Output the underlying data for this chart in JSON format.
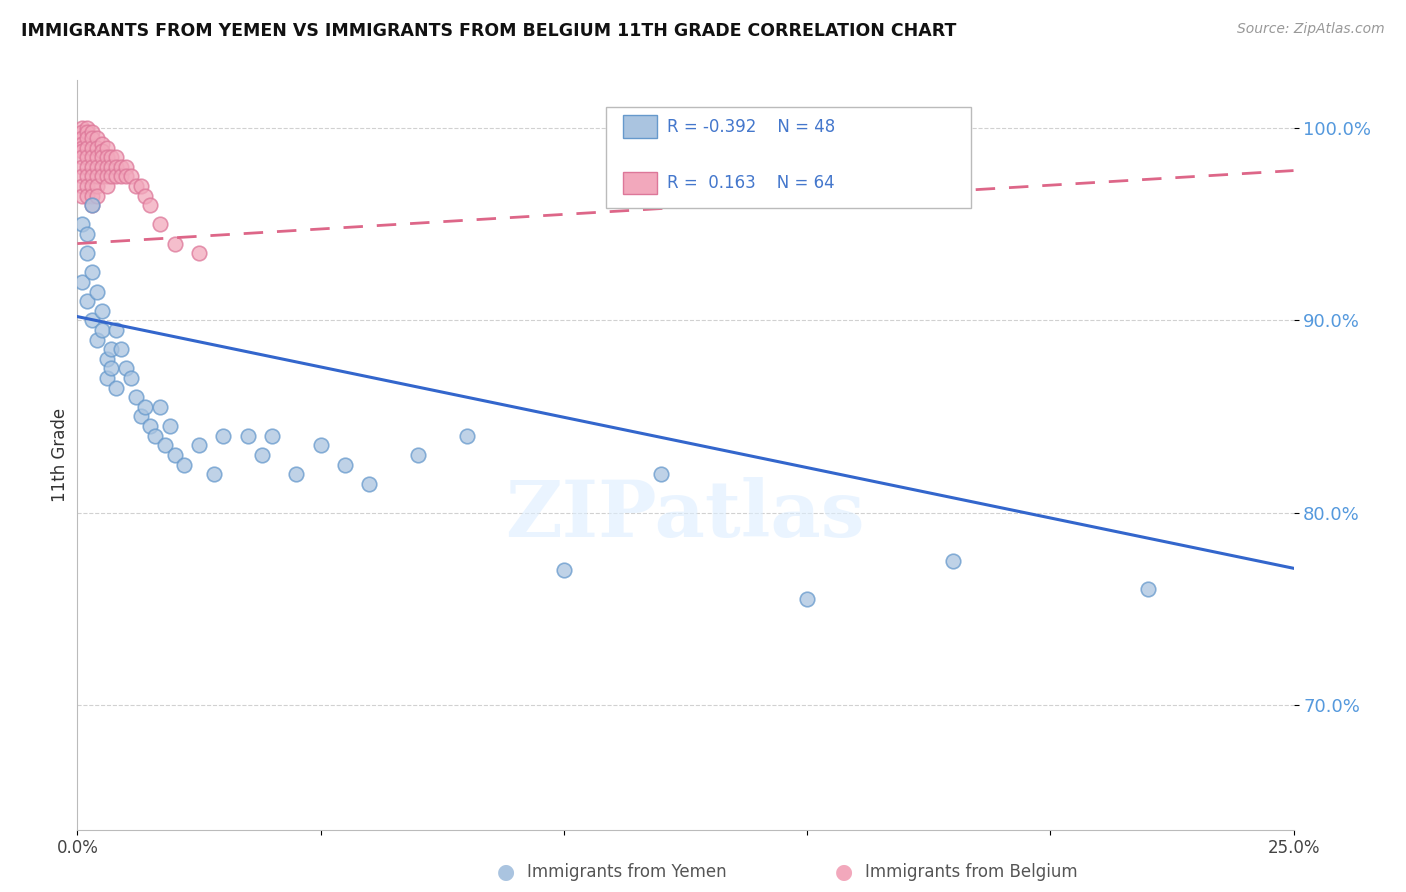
{
  "title": "IMMIGRANTS FROM YEMEN VS IMMIGRANTS FROM BELGIUM 11TH GRADE CORRELATION CHART",
  "source": "Source: ZipAtlas.com",
  "ylabel_label": "11th Grade",
  "x_min": 0.0,
  "x_max": 0.25,
  "y_min": 0.635,
  "y_max": 1.025,
  "y_ticks": [
    0.7,
    0.8,
    0.9,
    1.0
  ],
  "y_tick_labels": [
    "70.0%",
    "80.0%",
    "90.0%",
    "100.0%"
  ],
  "yemen_color": "#aac4e0",
  "belgium_color": "#f2a8bc",
  "yemen_edge": "#6699cc",
  "belgium_edge": "#dd7799",
  "trend_yemen_color": "#3366cc",
  "trend_belgium_color": "#dd6688",
  "R_yemen": -0.392,
  "N_yemen": 48,
  "R_belgium": 0.163,
  "N_belgium": 64,
  "watermark": "ZIPatlas",
  "legend_label_yemen": "Immigrants from Yemen",
  "legend_label_belgium": "Immigrants from Belgium",
  "trend_yemen_y0": 0.902,
  "trend_yemen_y1": 0.771,
  "trend_belgium_y0": 0.94,
  "trend_belgium_y1": 0.978,
  "yemen_x": [
    0.001,
    0.001,
    0.002,
    0.002,
    0.002,
    0.003,
    0.003,
    0.003,
    0.004,
    0.004,
    0.005,
    0.005,
    0.006,
    0.006,
    0.007,
    0.007,
    0.008,
    0.008,
    0.009,
    0.01,
    0.011,
    0.012,
    0.013,
    0.014,
    0.015,
    0.016,
    0.017,
    0.018,
    0.019,
    0.02,
    0.022,
    0.025,
    0.028,
    0.03,
    0.035,
    0.038,
    0.04,
    0.045,
    0.05,
    0.055,
    0.06,
    0.07,
    0.08,
    0.1,
    0.12,
    0.15,
    0.18,
    0.22
  ],
  "yemen_y": [
    0.95,
    0.92,
    0.935,
    0.945,
    0.91,
    0.96,
    0.925,
    0.9,
    0.89,
    0.915,
    0.905,
    0.895,
    0.88,
    0.87,
    0.885,
    0.875,
    0.895,
    0.865,
    0.885,
    0.875,
    0.87,
    0.86,
    0.85,
    0.855,
    0.845,
    0.84,
    0.855,
    0.835,
    0.845,
    0.83,
    0.825,
    0.835,
    0.82,
    0.84,
    0.84,
    0.83,
    0.84,
    0.82,
    0.835,
    0.825,
    0.815,
    0.83,
    0.84,
    0.77,
    0.82,
    0.755,
    0.775,
    0.76
  ],
  "belgium_x": [
    0.001,
    0.001,
    0.001,
    0.001,
    0.001,
    0.001,
    0.001,
    0.001,
    0.001,
    0.001,
    0.001,
    0.002,
    0.002,
    0.002,
    0.002,
    0.002,
    0.002,
    0.002,
    0.002,
    0.002,
    0.003,
    0.003,
    0.003,
    0.003,
    0.003,
    0.003,
    0.003,
    0.003,
    0.003,
    0.004,
    0.004,
    0.004,
    0.004,
    0.004,
    0.004,
    0.004,
    0.005,
    0.005,
    0.005,
    0.005,
    0.005,
    0.006,
    0.006,
    0.006,
    0.006,
    0.006,
    0.007,
    0.007,
    0.007,
    0.008,
    0.008,
    0.008,
    0.009,
    0.009,
    0.01,
    0.01,
    0.011,
    0.012,
    0.013,
    0.014,
    0.015,
    0.017,
    0.02,
    0.025
  ],
  "belgium_y": [
    1.0,
    0.998,
    0.995,
    0.992,
    0.99,
    0.988,
    0.985,
    0.98,
    0.975,
    0.97,
    0.965,
    1.0,
    0.998,
    0.995,
    0.99,
    0.985,
    0.98,
    0.975,
    0.97,
    0.965,
    0.998,
    0.995,
    0.99,
    0.985,
    0.98,
    0.975,
    0.97,
    0.965,
    0.96,
    0.995,
    0.99,
    0.985,
    0.98,
    0.975,
    0.97,
    0.965,
    0.992,
    0.988,
    0.985,
    0.98,
    0.975,
    0.99,
    0.985,
    0.98,
    0.975,
    0.97,
    0.985,
    0.98,
    0.975,
    0.985,
    0.98,
    0.975,
    0.98,
    0.975,
    0.98,
    0.975,
    0.975,
    0.97,
    0.97,
    0.965,
    0.96,
    0.95,
    0.94,
    0.935
  ]
}
